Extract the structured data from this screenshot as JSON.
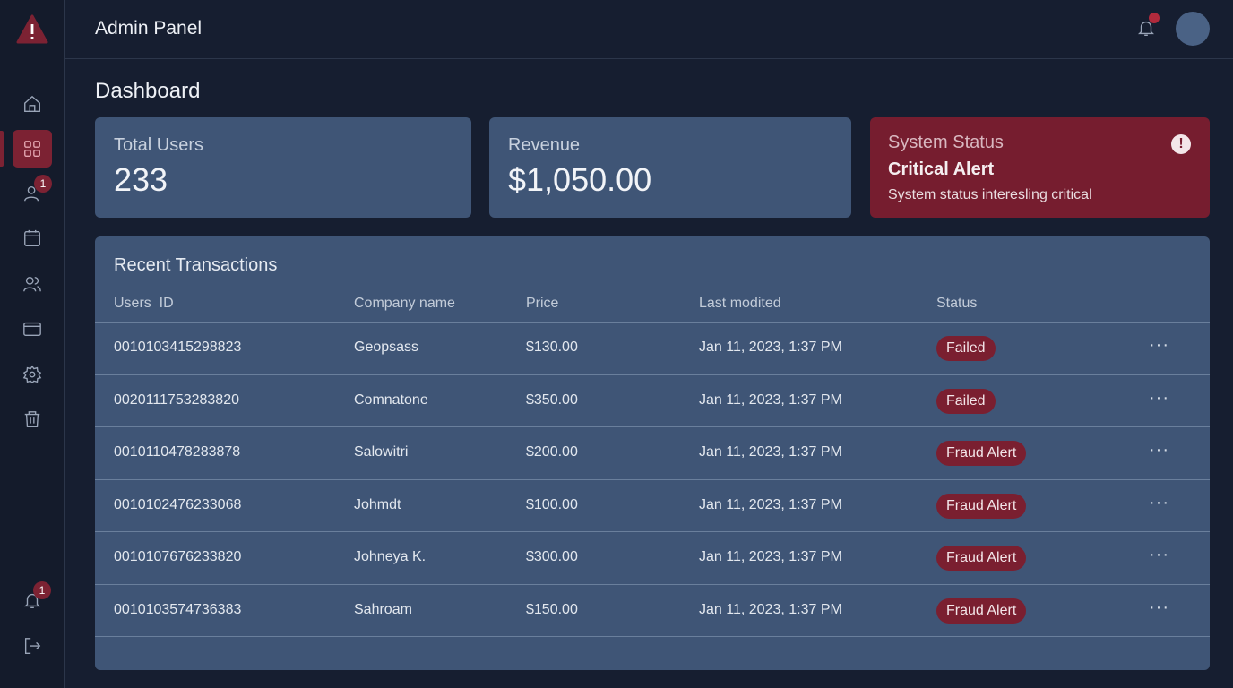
{
  "app": {
    "title": "Admin Panel"
  },
  "sidebar": {
    "items": [
      {
        "icon": "home-icon"
      },
      {
        "icon": "dashboard-icon",
        "active": true
      },
      {
        "icon": "user-icon",
        "badge": "1"
      },
      {
        "icon": "calendar-icon"
      },
      {
        "icon": "users-icon"
      },
      {
        "icon": "wallet-icon"
      },
      {
        "icon": "settings-icon"
      },
      {
        "icon": "trash-icon"
      }
    ],
    "bottom": [
      {
        "icon": "bell-icon",
        "badge": "1"
      },
      {
        "icon": "logout-icon"
      }
    ]
  },
  "page": {
    "title": "Dashboard"
  },
  "cards": {
    "users": {
      "label": "Total Users",
      "value": "233"
    },
    "revenue": {
      "label": "Revenue",
      "value": "$1,050.00"
    },
    "status": {
      "label": "System Status",
      "title": "Critical Alert",
      "description": "System status interesling critical",
      "icon": "!"
    }
  },
  "transactions": {
    "title": "Recent Transactions",
    "columns": [
      "Users  ID",
      "Company name",
      "Price",
      "Last modited",
      "Status"
    ],
    "rows": [
      {
        "id": "0010103415298823",
        "company": "Geopsass",
        "price": "$130.00",
        "modified": "Jan 11, 2023, 1:37 PM",
        "status": "Failed"
      },
      {
        "id": "0020111753283820",
        "company": "Comnatone",
        "price": "$350.00",
        "modified": "Jan 11, 2023, 1:37 PM",
        "status": "Failed"
      },
      {
        "id": "0010110478283878",
        "company": "Salowitri",
        "price": "$200.00",
        "modified": "Jan 11, 2023, 1:37 PM",
        "status": "Fraud Alert"
      },
      {
        "id": "0010102476233068",
        "company": "Johmdt",
        "price": "$100.00",
        "modified": "Jan 11, 2023, 1:37 PM",
        "status": "Fraud Alert"
      },
      {
        "id": "0010107676233820",
        "company": "Johneya K.",
        "price": "$300.00",
        "modified": "Jan 11, 2023, 1:37 PM",
        "status": "Fraud Alert"
      },
      {
        "id": "0010103574736383",
        "company": "Sahroam",
        "price": "$150.00",
        "modified": "Jan 11, 2023, 1:37 PM",
        "status": "Fraud Alert"
      }
    ],
    "more": "···"
  },
  "colors": {
    "background": "#161e30",
    "card": "#3f5576",
    "alert": "#761d2f"
  }
}
